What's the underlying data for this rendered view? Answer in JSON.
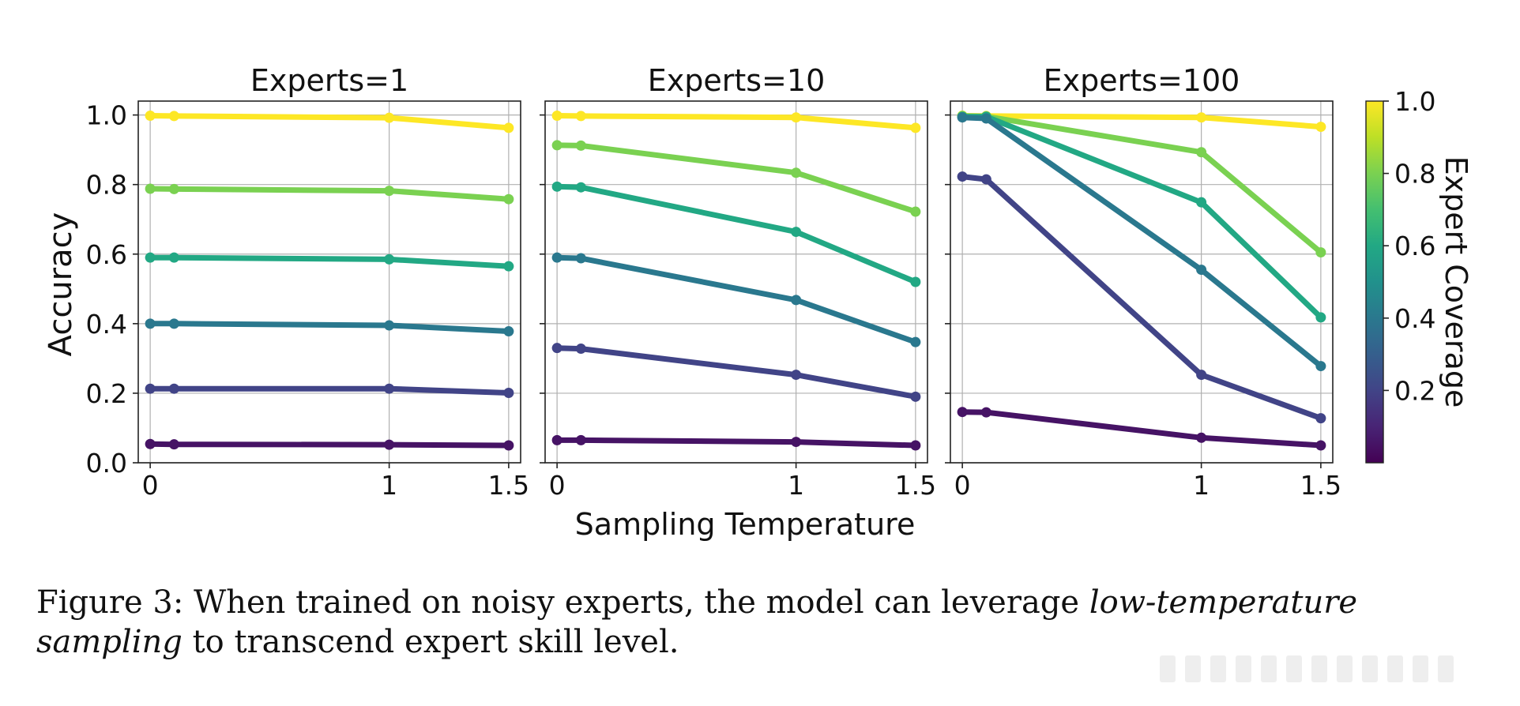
{
  "chart_data": {
    "type": "line",
    "panels": [
      {
        "title": "Experts=1",
        "series": [
          {
            "coverage": 1.0,
            "x": [
              0,
              0.1,
              1,
              1.5
            ],
            "y": [
              0.998,
              0.997,
              0.992,
              0.963
            ]
          },
          {
            "coverage": 0.8,
            "x": [
              0,
              0.1,
              1,
              1.5
            ],
            "y": [
              0.788,
              0.787,
              0.782,
              0.758
            ]
          },
          {
            "coverage": 0.6,
            "x": [
              0,
              0.1,
              1,
              1.5
            ],
            "y": [
              0.59,
              0.59,
              0.585,
              0.565
            ]
          },
          {
            "coverage": 0.4,
            "x": [
              0,
              0.1,
              1,
              1.5
            ],
            "y": [
              0.4,
              0.4,
              0.395,
              0.378
            ]
          },
          {
            "coverage": 0.2,
            "x": [
              0,
              0.1,
              1,
              1.5
            ],
            "y": [
              0.213,
              0.213,
              0.213,
              0.201
            ]
          },
          {
            "coverage": 0.05,
            "x": [
              0,
              0.1,
              1,
              1.5
            ],
            "y": [
              0.054,
              0.053,
              0.052,
              0.05
            ]
          }
        ]
      },
      {
        "title": "Experts=10",
        "series": [
          {
            "coverage": 1.0,
            "x": [
              0,
              0.1,
              1,
              1.5
            ],
            "y": [
              0.998,
              0.997,
              0.993,
              0.963
            ]
          },
          {
            "coverage": 0.8,
            "x": [
              0,
              0.1,
              1,
              1.5
            ],
            "y": [
              0.913,
              0.912,
              0.834,
              0.722
            ]
          },
          {
            "coverage": 0.6,
            "x": [
              0,
              0.1,
              1,
              1.5
            ],
            "y": [
              0.794,
              0.792,
              0.664,
              0.52
            ]
          },
          {
            "coverage": 0.4,
            "x": [
              0,
              0.1,
              1,
              1.5
            ],
            "y": [
              0.59,
              0.588,
              0.468,
              0.347
            ]
          },
          {
            "coverage": 0.2,
            "x": [
              0,
              0.1,
              1,
              1.5
            ],
            "y": [
              0.33,
              0.328,
              0.253,
              0.19
            ]
          },
          {
            "coverage": 0.05,
            "x": [
              0,
              0.1,
              1,
              1.5
            ],
            "y": [
              0.065,
              0.065,
              0.06,
              0.05
            ]
          }
        ]
      },
      {
        "title": "Experts=100",
        "series": [
          {
            "coverage": 1.0,
            "x": [
              0,
              0.1,
              1,
              1.5
            ],
            "y": [
              0.998,
              0.997,
              0.993,
              0.966
            ]
          },
          {
            "coverage": 0.8,
            "x": [
              0,
              0.1,
              1,
              1.5
            ],
            "y": [
              0.997,
              0.996,
              0.893,
              0.605
            ]
          },
          {
            "coverage": 0.6,
            "x": [
              0,
              0.1,
              1,
              1.5
            ],
            "y": [
              0.995,
              0.995,
              0.749,
              0.418
            ]
          },
          {
            "coverage": 0.4,
            "x": [
              0,
              0.1,
              1,
              1.5
            ],
            "y": [
              0.993,
              0.99,
              0.555,
              0.278
            ]
          },
          {
            "coverage": 0.2,
            "x": [
              0,
              0.1,
              1,
              1.5
            ],
            "y": [
              0.823,
              0.815,
              0.253,
              0.128
            ]
          },
          {
            "coverage": 0.05,
            "x": [
              0,
              0.1,
              1,
              1.5
            ],
            "y": [
              0.146,
              0.145,
              0.072,
              0.05
            ]
          }
        ]
      }
    ],
    "xlabel": "Sampling Temperature",
    "ylabel": "Accuracy",
    "xlim": [
      -0.05,
      1.55
    ],
    "ylim": [
      0,
      1.04
    ],
    "xticks": [
      {
        "value": 0,
        "label": "0"
      },
      {
        "value": 1,
        "label": "1"
      },
      {
        "value": 1.5,
        "label": "1.5"
      }
    ],
    "yticks": [
      {
        "value": 0,
        "label": "0.0"
      },
      {
        "value": 0.2,
        "label": "0.2"
      },
      {
        "value": 0.4,
        "label": "0.4"
      },
      {
        "value": 0.6,
        "label": "0.6"
      },
      {
        "value": 0.8,
        "label": "0.8"
      },
      {
        "value": 1.0,
        "label": "1.0"
      }
    ],
    "grid": true,
    "colorbar": {
      "label": "Expert Coverage",
      "colormap": "viridis",
      "range": [
        0,
        1
      ],
      "ticks": [
        {
          "value": 0.2,
          "label": "0.2"
        },
        {
          "value": 0.4,
          "label": "0.4"
        },
        {
          "value": 0.6,
          "label": "0.6"
        },
        {
          "value": 0.8,
          "label": "0.8"
        },
        {
          "value": 1.0,
          "label": "1.0"
        }
      ]
    }
  },
  "caption": {
    "prefix": "Figure 3: When trained on noisy experts, the model can leverage ",
    "emphasis": "low-temperature sampling",
    "suffix": " to transcend expert skill level."
  }
}
